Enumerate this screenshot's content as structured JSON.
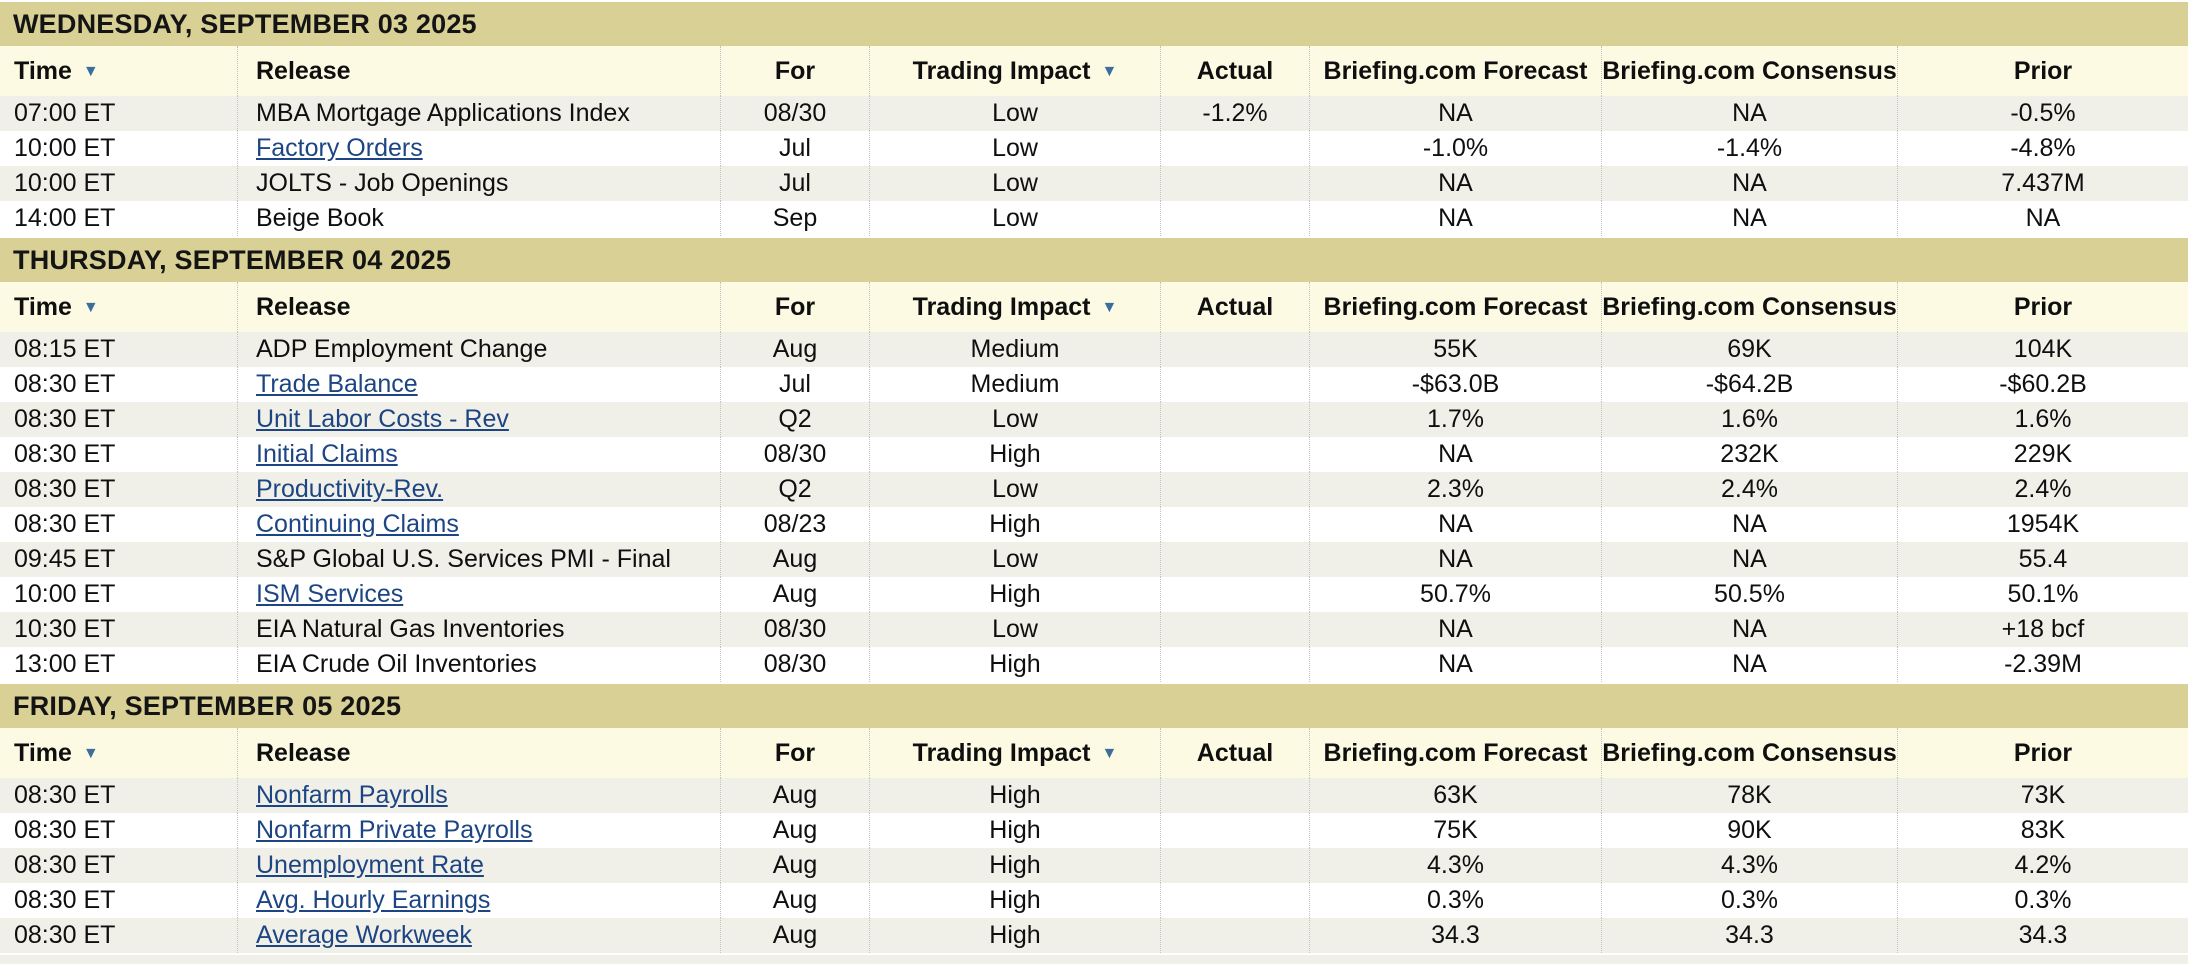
{
  "table": {
    "columns": [
      {
        "id": "time",
        "label": "Time",
        "align": "left",
        "sortable": true
      },
      {
        "id": "release",
        "label": "Release",
        "align": "left",
        "sortable": false
      },
      {
        "id": "for",
        "label": "For",
        "align": "center",
        "sortable": false
      },
      {
        "id": "impact",
        "label": "Trading Impact",
        "align": "center",
        "sortable": true
      },
      {
        "id": "actual",
        "label": "Actual",
        "align": "center",
        "sortable": false
      },
      {
        "id": "forecast",
        "label": "Briefing.com Forecast",
        "align": "center",
        "sortable": false
      },
      {
        "id": "consensus",
        "label": "Briefing.com Consensus",
        "align": "center",
        "sortable": false
      },
      {
        "id": "prior",
        "label": "Prior",
        "align": "center",
        "sortable": false
      }
    ],
    "sections": [
      {
        "date": "WEDNESDAY, SEPTEMBER 03 2025",
        "rows": [
          {
            "time": "07:00 ET",
            "release": "MBA Mortgage Applications Index",
            "is_link": false,
            "for": "08/30",
            "impact": "Low",
            "actual": "-1.2%",
            "forecast": "NA",
            "consensus": "NA",
            "prior": "-0.5%"
          },
          {
            "time": "10:00 ET",
            "release": "Factory Orders",
            "is_link": true,
            "for": "Jul",
            "impact": "Low",
            "actual": "",
            "forecast": "-1.0%",
            "consensus": "-1.4%",
            "prior": "-4.8%"
          },
          {
            "time": "10:00 ET",
            "release": "JOLTS - Job Openings",
            "is_link": false,
            "for": "Jul",
            "impact": "Low",
            "actual": "",
            "forecast": "NA",
            "consensus": "NA",
            "prior": "7.437M"
          },
          {
            "time": "14:00 ET",
            "release": "Beige Book",
            "is_link": false,
            "for": "Sep",
            "impact": "Low",
            "actual": "",
            "forecast": "NA",
            "consensus": "NA",
            "prior": "NA"
          }
        ]
      },
      {
        "date": "THURSDAY, SEPTEMBER 04 2025",
        "rows": [
          {
            "time": "08:15 ET",
            "release": "ADP Employment Change",
            "is_link": false,
            "for": "Aug",
            "impact": "Medium",
            "actual": "",
            "forecast": "55K",
            "consensus": "69K",
            "prior": "104K"
          },
          {
            "time": "08:30 ET",
            "release": "Trade Balance",
            "is_link": true,
            "for": "Jul",
            "impact": "Medium",
            "actual": "",
            "forecast": "-$63.0B",
            "consensus": "-$64.2B",
            "prior": "-$60.2B"
          },
          {
            "time": "08:30 ET",
            "release": "Unit Labor Costs - Rev",
            "is_link": true,
            "for": "Q2",
            "impact": "Low",
            "actual": "",
            "forecast": "1.7%",
            "consensus": "1.6%",
            "prior": "1.6%"
          },
          {
            "time": "08:30 ET",
            "release": "Initial Claims",
            "is_link": true,
            "for": "08/30",
            "impact": "High",
            "actual": "",
            "forecast": "NA",
            "consensus": "232K",
            "prior": "229K"
          },
          {
            "time": "08:30 ET",
            "release": "Productivity-Rev.",
            "is_link": true,
            "for": "Q2",
            "impact": "Low",
            "actual": "",
            "forecast": "2.3%",
            "consensus": "2.4%",
            "prior": "2.4%"
          },
          {
            "time": "08:30 ET",
            "release": "Continuing Claims",
            "is_link": true,
            "for": "08/23",
            "impact": "High",
            "actual": "",
            "forecast": "NA",
            "consensus": "NA",
            "prior": "1954K"
          },
          {
            "time": "09:45 ET",
            "release": "S&P Global U.S. Services PMI - Final",
            "is_link": false,
            "for": "Aug",
            "impact": "Low",
            "actual": "",
            "forecast": "NA",
            "consensus": "NA",
            "prior": "55.4"
          },
          {
            "time": "10:00 ET",
            "release": "ISM Services",
            "is_link": true,
            "for": "Aug",
            "impact": "High",
            "actual": "",
            "forecast": "50.7%",
            "consensus": "50.5%",
            "prior": "50.1%"
          },
          {
            "time": "10:30 ET",
            "release": "EIA Natural Gas Inventories",
            "is_link": false,
            "for": "08/30",
            "impact": "Low",
            "actual": "",
            "forecast": "NA",
            "consensus": "NA",
            "prior": "+18 bcf"
          },
          {
            "time": "13:00 ET",
            "release": "EIA Crude Oil Inventories",
            "is_link": false,
            "for": "08/30",
            "impact": "High",
            "actual": "",
            "forecast": "NA",
            "consensus": "NA",
            "prior": "-2.39M"
          }
        ]
      },
      {
        "date": "FRIDAY, SEPTEMBER 05 2025",
        "rows": [
          {
            "time": "08:30 ET",
            "release": "Nonfarm Payrolls",
            "is_link": true,
            "for": "Aug",
            "impact": "High",
            "actual": "",
            "forecast": "63K",
            "consensus": "78K",
            "prior": "73K"
          },
          {
            "time": "08:30 ET",
            "release": "Nonfarm Private Payrolls",
            "is_link": true,
            "for": "Aug",
            "impact": "High",
            "actual": "",
            "forecast": "75K",
            "consensus": "90K",
            "prior": "83K"
          },
          {
            "time": "08:30 ET",
            "release": "Unemployment Rate",
            "is_link": true,
            "for": "Aug",
            "impact": "High",
            "actual": "",
            "forecast": "4.3%",
            "consensus": "4.3%",
            "prior": "4.2%"
          },
          {
            "time": "08:30 ET",
            "release": "Avg. Hourly Earnings",
            "is_link": true,
            "for": "Aug",
            "impact": "High",
            "actual": "",
            "forecast": "0.3%",
            "consensus": "0.3%",
            "prior": "0.3%"
          },
          {
            "time": "08:30 ET",
            "release": "Average Workweek",
            "is_link": true,
            "for": "Aug",
            "impact": "High",
            "actual": "",
            "forecast": "34.3",
            "consensus": "34.3",
            "prior": "34.3"
          }
        ]
      }
    ]
  },
  "icons": {
    "sort_desc": "▼"
  },
  "colors": {
    "date_band_bg": "#d8d095",
    "header_row_bg": "#fdfae4",
    "stripe_row_bg": "#f0f0e9",
    "plain_row_bg": "#ffffff",
    "link_text": "#1d4583",
    "sort_arrow": "#3c6d9c",
    "body_text": "#0f0f0f",
    "column_divider": "#c2c2c2"
  }
}
